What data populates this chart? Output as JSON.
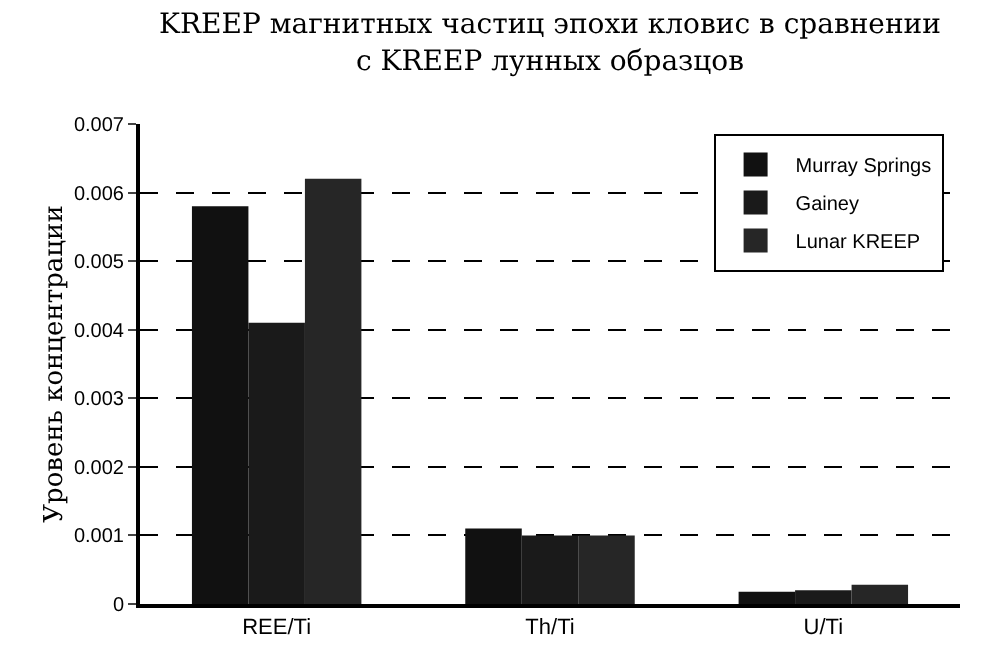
{
  "chart_data": {
    "type": "bar",
    "title": "KREEP магнитных частиц эпохи кловис в сравнении\nс KREEP лунных образцов",
    "ylabel": "Уровень концентрации",
    "categories": [
      "REE/Ti",
      "Th/Ti",
      "U/Ti"
    ],
    "series": [
      {
        "name": "Murray Springs",
        "color": "#111111",
        "values": [
          0.0058,
          0.0011,
          0.00018
        ]
      },
      {
        "name": "Gainey",
        "color": "#1a1a1a",
        "values": [
          0.0041,
          0.001,
          0.0002
        ]
      },
      {
        "name": "Lunar KREEP",
        "color": "#262626",
        "values": [
          0.0062,
          0.001,
          0.00028
        ]
      }
    ],
    "ylim": [
      0,
      0.007
    ],
    "yticks": [
      0,
      0.001,
      0.002,
      0.003,
      0.004,
      0.005,
      0.006,
      0.007
    ],
    "grid": "y",
    "legend": "top right"
  }
}
